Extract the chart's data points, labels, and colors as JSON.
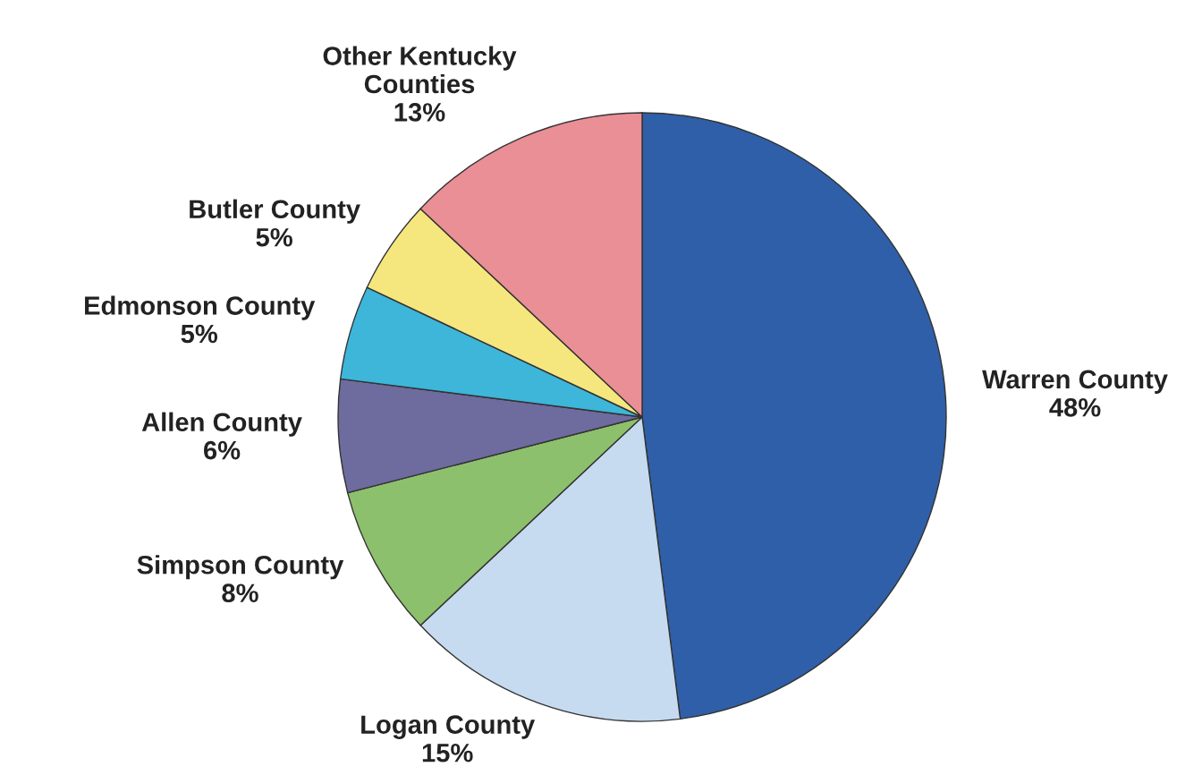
{
  "chart_data": {
    "type": "pie",
    "categories": [
      "Warren County",
      "Logan County",
      "Simpson County",
      "Allen County",
      "Edmonson County",
      "Butler County",
      "Other Kentucky\nCounties"
    ],
    "values": [
      48,
      15,
      8,
      6,
      5,
      5,
      13
    ],
    "value_labels": [
      "48%",
      "15%",
      "8%",
      "6%",
      "5%",
      "5%",
      "13%"
    ],
    "colors": [
      "#2f5fa8",
      "#c6daf0",
      "#8dc06c",
      "#6e6b9f",
      "#3db6d9",
      "#f6e67e",
      "#ea8f95"
    ],
    "legend": false
  }
}
